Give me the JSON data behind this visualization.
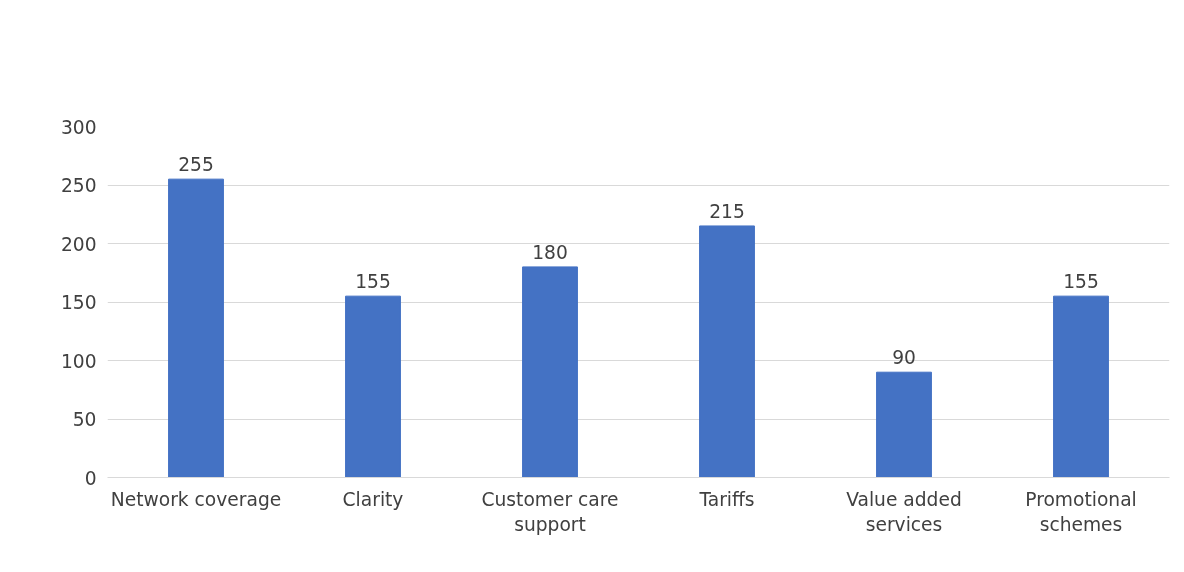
{
  "chart_data": {
    "type": "bar",
    "categories": [
      "Network coverage",
      "Clarity",
      "Customer care support",
      "Tariffs",
      "Value added services",
      "Promotional schemes"
    ],
    "values": [
      255,
      155,
      180,
      215,
      90,
      155
    ],
    "color": "#4472c4",
    "ylim": [
      0,
      300
    ],
    "yticks": [
      0,
      50,
      100,
      150,
      200,
      250,
      300
    ],
    "grid": "y",
    "data_labels": true
  }
}
